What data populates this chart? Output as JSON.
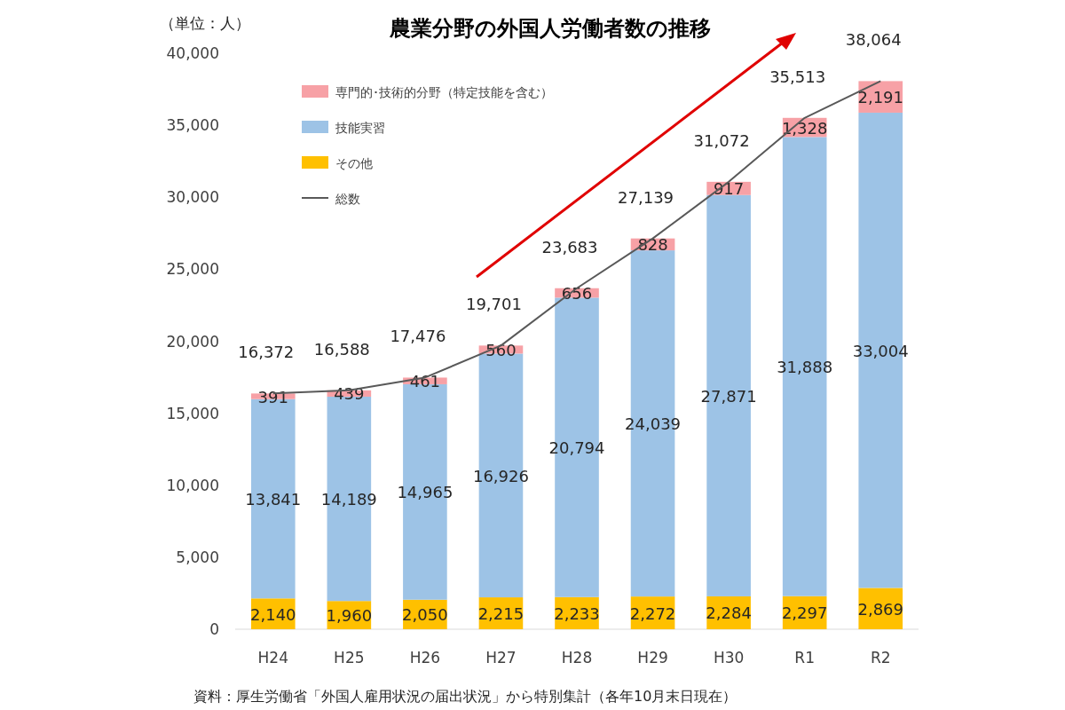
{
  "chart_data": {
    "type": "bar",
    "stacked": true,
    "title": "農業分野の外国人労働者数の推移",
    "ylabel": "（単位：人）",
    "categories": [
      "H24",
      "H25",
      "H26",
      "H27",
      "H28",
      "H29",
      "H30",
      "R1",
      "R2"
    ],
    "series": [
      {
        "name": "その他",
        "color": "#ffc000",
        "values": [
          2140,
          1960,
          2050,
          2215,
          2233,
          2272,
          2284,
          2297,
          2869
        ],
        "value_labels": [
          "2,140",
          "1,960",
          "2,050",
          "2,215",
          "2,233",
          "2,272",
          "2,284",
          "2,297",
          "2,869"
        ]
      },
      {
        "name": "技能実習",
        "color": "#9dc3e6",
        "values": [
          13841,
          14189,
          14965,
          16926,
          20794,
          24039,
          27871,
          31888,
          33004
        ],
        "value_labels": [
          "13,841",
          "14,189",
          "14,965",
          "16,926",
          "20,794",
          "24,039",
          "27,871",
          "31,888",
          "33,004"
        ]
      },
      {
        "name": "専門的･技術的分野（特定技能を含む）",
        "color": "#f7a1a6",
        "values": [
          391,
          439,
          461,
          560,
          656,
          828,
          917,
          1328,
          2191
        ],
        "value_labels": [
          "391",
          "439",
          "461",
          "560",
          "656",
          "828",
          "917",
          "1,328",
          "2,191"
        ]
      },
      {
        "name": "総数",
        "type": "line",
        "color": "#595959",
        "values": [
          16372,
          16588,
          17476,
          19701,
          23683,
          27139,
          31072,
          35513,
          38064
        ],
        "value_labels": [
          "16,372",
          "16,588",
          "17,476",
          "19,701",
          "23,683",
          "27,139",
          "31,072",
          "35,513",
          "38,064"
        ]
      }
    ],
    "ylim": [
      0,
      40000
    ],
    "yticks": [
      {
        "value": 0,
        "label": "0"
      },
      {
        "value": 5000,
        "label": "5,000"
      },
      {
        "value": 10000,
        "label": "10,000"
      },
      {
        "value": 15000,
        "label": "15,000"
      },
      {
        "value": 20000,
        "label": "20,000"
      },
      {
        "value": 25000,
        "label": "25,000"
      },
      {
        "value": 30000,
        "label": "30,000"
      },
      {
        "value": 35000,
        "label": "35,000"
      },
      {
        "value": 40000,
        "label": "40,000"
      }
    ],
    "legend": "top left",
    "marker": "none",
    "annotations": [
      "資料：厚生労働省「外国人雇用状況の届出状況」から特別集計（各年10月末日現在）"
    ]
  }
}
